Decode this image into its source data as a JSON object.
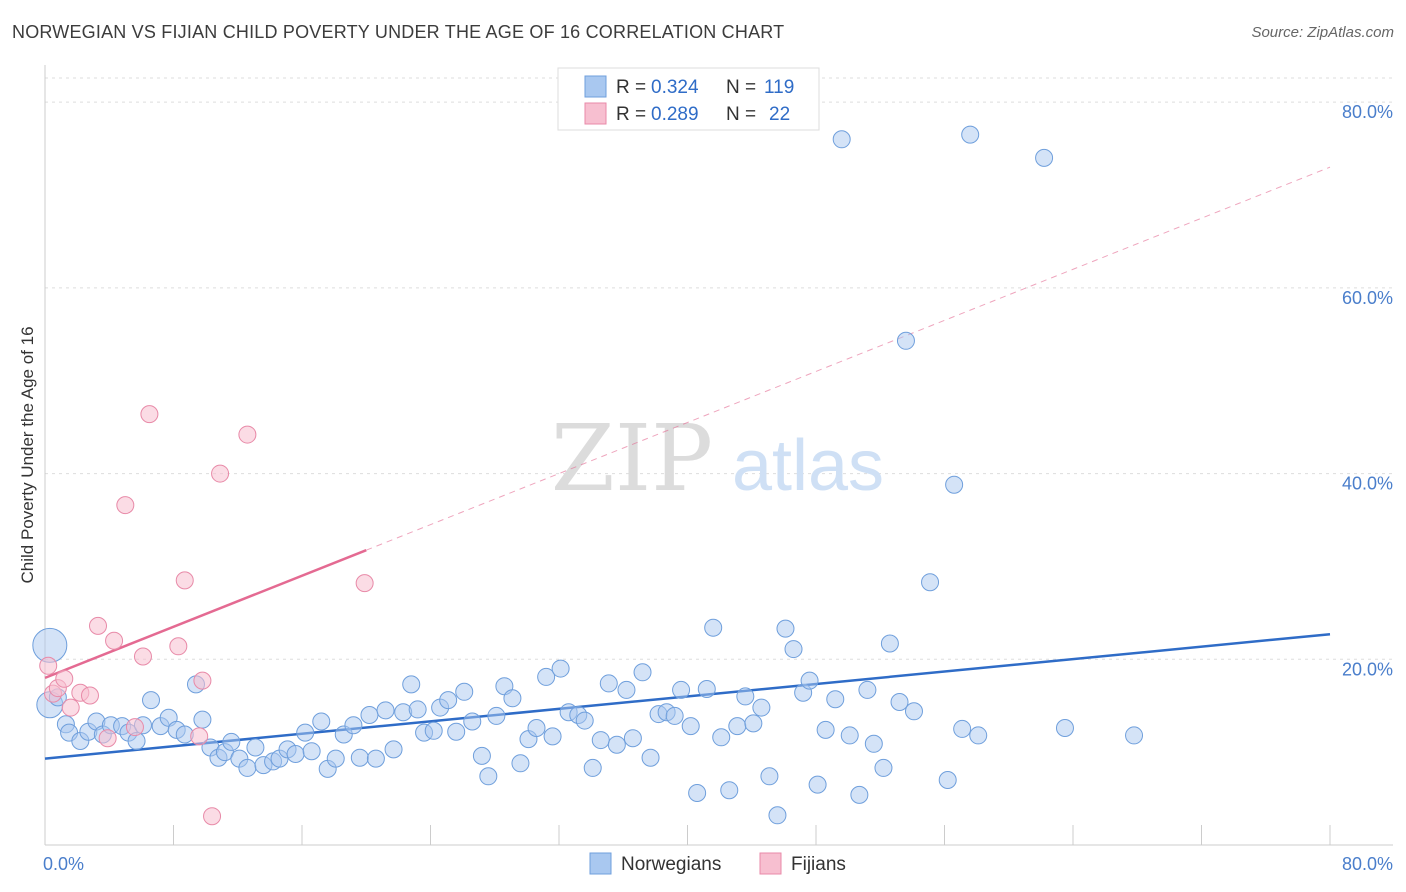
{
  "title": "NORWEGIAN VS FIJIAN CHILD POVERTY UNDER THE AGE OF 16 CORRELATION CHART",
  "source": "Source: ZipAtlas.com",
  "watermark": {
    "zip": "ZIP",
    "atlas": "atlas"
  },
  "colors": {
    "norwegians_fill": "#a9c8f0",
    "norwegians_stroke": "#6f9fdc",
    "norwegians_line": "#2f6cc7",
    "fijians_fill": "#f7bfd0",
    "fijians_stroke": "#e88aa8",
    "fijians_line": "#e46a92",
    "grid": "#dddddd",
    "tick_text": "#4a7ecb"
  },
  "legend": {
    "row1": {
      "r_label": "R = ",
      "r_value": "0.324",
      "n_label": "N = ",
      "n_value": "119"
    },
    "row2": {
      "r_label": "R = ",
      "r_value": "0.289",
      "n_label": "N = ",
      "n_value": "22"
    }
  },
  "chart_data": {
    "type": "scatter",
    "title": "NORWEGIAN VS FIJIAN CHILD POVERTY UNDER THE AGE OF 16 CORRELATION CHART",
    "xlabel": "",
    "ylabel": "Child Poverty Under the Age of 16",
    "xlim": [
      0,
      80
    ],
    "ylim": [
      0,
      84
    ],
    "x_tick_labels": [
      "0.0%",
      "80.0%"
    ],
    "y_ticks": [
      20,
      40,
      60,
      80
    ],
    "y_tick_labels": [
      "20.0%",
      "40.0%",
      "60.0%",
      "80.0%"
    ],
    "grid": true,
    "legend_position": "bottom-center",
    "series": [
      {
        "name": "Norwegians",
        "trend": {
          "x": [
            0,
            80
          ],
          "y": [
            9.3,
            22.7
          ],
          "style": "solid"
        },
        "points": [
          [
            0.3,
            21.5
          ],
          [
            0.3,
            15.1
          ],
          [
            0.8,
            15.9
          ],
          [
            1.3,
            13.0
          ],
          [
            1.5,
            12.1
          ],
          [
            2.2,
            11.2
          ],
          [
            2.7,
            12.2
          ],
          [
            3.2,
            13.3
          ],
          [
            3.6,
            11.9
          ],
          [
            4.1,
            12.9
          ],
          [
            4.8,
            12.8
          ],
          [
            5.2,
            12.1
          ],
          [
            5.7,
            11.2
          ],
          [
            6.1,
            12.9
          ],
          [
            6.6,
            15.6
          ],
          [
            7.2,
            12.8
          ],
          [
            7.7,
            13.7
          ],
          [
            8.2,
            12.4
          ],
          [
            8.7,
            11.9
          ],
          [
            9.4,
            17.3
          ],
          [
            9.8,
            13.5
          ],
          [
            10.3,
            10.5
          ],
          [
            10.8,
            9.4
          ],
          [
            11.2,
            10.0
          ],
          [
            11.6,
            11.1
          ],
          [
            12.1,
            9.3
          ],
          [
            12.6,
            8.3
          ],
          [
            13.1,
            10.5
          ],
          [
            13.6,
            8.6
          ],
          [
            14.2,
            9.0
          ],
          [
            14.6,
            9.3
          ],
          [
            15.1,
            10.3
          ],
          [
            15.6,
            9.8
          ],
          [
            16.2,
            12.1
          ],
          [
            16.6,
            10.1
          ],
          [
            17.2,
            13.3
          ],
          [
            17.6,
            8.2
          ],
          [
            18.1,
            9.3
          ],
          [
            18.6,
            11.9
          ],
          [
            19.2,
            12.9
          ],
          [
            19.6,
            9.4
          ],
          [
            20.2,
            14.0
          ],
          [
            20.6,
            9.3
          ],
          [
            21.2,
            14.5
          ],
          [
            21.7,
            10.3
          ],
          [
            22.3,
            14.3
          ],
          [
            22.8,
            17.3
          ],
          [
            23.2,
            14.6
          ],
          [
            23.6,
            12.1
          ],
          [
            24.2,
            12.3
          ],
          [
            24.6,
            14.8
          ],
          [
            25.1,
            15.6
          ],
          [
            25.6,
            12.2
          ],
          [
            26.1,
            16.5
          ],
          [
            26.6,
            13.3
          ],
          [
            27.2,
            9.6
          ],
          [
            27.6,
            7.4
          ],
          [
            28.1,
            13.9
          ],
          [
            28.6,
            17.1
          ],
          [
            29.1,
            15.8
          ],
          [
            29.6,
            8.8
          ],
          [
            30.1,
            11.4
          ],
          [
            30.6,
            12.6
          ],
          [
            31.2,
            18.1
          ],
          [
            31.6,
            11.7
          ],
          [
            32.1,
            19.0
          ],
          [
            32.6,
            14.3
          ],
          [
            33.2,
            14.0
          ],
          [
            33.6,
            13.4
          ],
          [
            34.1,
            8.3
          ],
          [
            34.6,
            11.3
          ],
          [
            35.1,
            17.4
          ],
          [
            35.6,
            10.8
          ],
          [
            36.2,
            16.7
          ],
          [
            36.6,
            11.5
          ],
          [
            37.2,
            18.6
          ],
          [
            37.7,
            9.4
          ],
          [
            38.2,
            14.1
          ],
          [
            38.7,
            14.3
          ],
          [
            39.2,
            13.9
          ],
          [
            39.6,
            16.7
          ],
          [
            40.2,
            12.8
          ],
          [
            40.6,
            5.6
          ],
          [
            41.2,
            16.8
          ],
          [
            41.6,
            23.4
          ],
          [
            42.1,
            11.6
          ],
          [
            42.6,
            5.9
          ],
          [
            43.1,
            12.8
          ],
          [
            43.6,
            16.0
          ],
          [
            44.1,
            13.1
          ],
          [
            44.6,
            14.8
          ],
          [
            45.1,
            7.4
          ],
          [
            45.6,
            3.2
          ],
          [
            46.1,
            23.3
          ],
          [
            46.6,
            21.1
          ],
          [
            47.2,
            16.4
          ],
          [
            47.6,
            17.7
          ],
          [
            48.1,
            6.5
          ],
          [
            48.6,
            12.4
          ],
          [
            49.2,
            15.7
          ],
          [
            49.6,
            76.0
          ],
          [
            50.1,
            11.8
          ],
          [
            50.7,
            5.4
          ],
          [
            51.2,
            16.7
          ],
          [
            51.6,
            10.9
          ],
          [
            52.2,
            8.3
          ],
          [
            52.6,
            21.7
          ],
          [
            53.2,
            15.4
          ],
          [
            53.6,
            54.3
          ],
          [
            54.1,
            14.4
          ],
          [
            55.1,
            28.3
          ],
          [
            56.2,
            7.0
          ],
          [
            56.6,
            38.8
          ],
          [
            57.1,
            12.5
          ],
          [
            57.6,
            76.5
          ],
          [
            58.1,
            11.8
          ],
          [
            62.2,
            74.0
          ],
          [
            63.5,
            12.6
          ],
          [
            67.8,
            11.8
          ]
        ]
      },
      {
        "name": "Fijians",
        "trend": {
          "x": [
            0,
            80
          ],
          "y": [
            18.0,
            73.0
          ],
          "style": "solid-then-dashed",
          "solid_until_x": 20
        },
        "points": [
          [
            0.2,
            19.3
          ],
          [
            0.5,
            16.3
          ],
          [
            0.8,
            16.9
          ],
          [
            1.2,
            17.9
          ],
          [
            1.6,
            14.8
          ],
          [
            2.2,
            16.4
          ],
          [
            2.8,
            16.1
          ],
          [
            3.3,
            23.6
          ],
          [
            3.9,
            11.5
          ],
          [
            4.3,
            22.0
          ],
          [
            5.0,
            36.6
          ],
          [
            5.6,
            12.7
          ],
          [
            6.1,
            20.3
          ],
          [
            6.5,
            46.4
          ],
          [
            8.3,
            21.4
          ],
          [
            8.7,
            28.5
          ],
          [
            9.6,
            11.7
          ],
          [
            9.8,
            17.7
          ],
          [
            10.4,
            3.1
          ],
          [
            10.9,
            40.0
          ],
          [
            12.6,
            44.2
          ],
          [
            19.9,
            28.2
          ]
        ]
      }
    ]
  },
  "bottom_legend": {
    "items": [
      "Norwegians",
      "Fijians"
    ]
  }
}
